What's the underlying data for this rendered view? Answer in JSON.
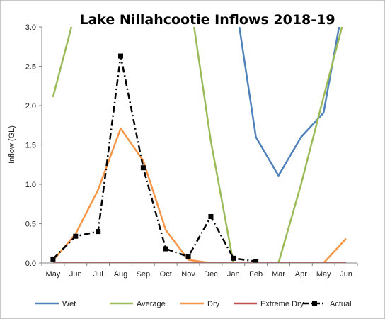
{
  "chart_data": {
    "type": "line",
    "title": "Lake Nillahcootie Inflows 2018-19",
    "xlabel": "",
    "ylabel": "Inflow (GL)",
    "categories": [
      "May",
      "Jun",
      "Jul",
      "Aug",
      "Sep",
      "Oct",
      "Nov",
      "Dec",
      "Jan",
      "Feb",
      "Mar",
      "Apr",
      "May",
      "Jun"
    ],
    "ylim": [
      0,
      3.0
    ],
    "yticks": [
      "0.0",
      "0.5",
      "1.0",
      "1.5",
      "2.0",
      "2.5",
      "3.0"
    ],
    "grid": false,
    "legend_position": "bottom",
    "series": [
      {
        "name": "Wet",
        "color": "#4f81bd",
        "style": "solid",
        "marker": "none",
        "values": [
          null,
          null,
          null,
          null,
          null,
          null,
          null,
          null,
          3.5,
          1.6,
          1.11,
          1.6,
          1.91,
          3.5
        ]
      },
      {
        "name": "Average",
        "color": "#9bbb59",
        "style": "solid",
        "marker": "none",
        "values": [
          2.11,
          3.2,
          null,
          null,
          null,
          null,
          3.5,
          1.55,
          0.0,
          0.0,
          0.0,
          1.0,
          2.11,
          3.2
        ]
      },
      {
        "name": "Dry",
        "color": "#f79646",
        "style": "solid",
        "marker": "none",
        "values": [
          0.03,
          0.37,
          0.93,
          1.71,
          1.3,
          0.42,
          0.04,
          0.0,
          0.0,
          0.0,
          0.0,
          0.0,
          0.0,
          0.31
        ]
      },
      {
        "name": "Extreme Dry",
        "color": "#c0504d",
        "style": "solid",
        "marker": "none",
        "values": [
          0.0,
          0.0,
          0.0,
          0.0,
          0.0,
          0.0,
          0.0,
          0.0,
          0.0,
          0.0,
          0.0,
          0.0,
          0.0,
          0.0
        ]
      },
      {
        "name": "Actual",
        "color": "#000000",
        "style": "dashdot",
        "marker": "square",
        "values": [
          0.05,
          0.34,
          0.4,
          2.63,
          1.21,
          0.18,
          0.08,
          0.59,
          0.06,
          0.02,
          null,
          null,
          null,
          null
        ]
      }
    ]
  }
}
